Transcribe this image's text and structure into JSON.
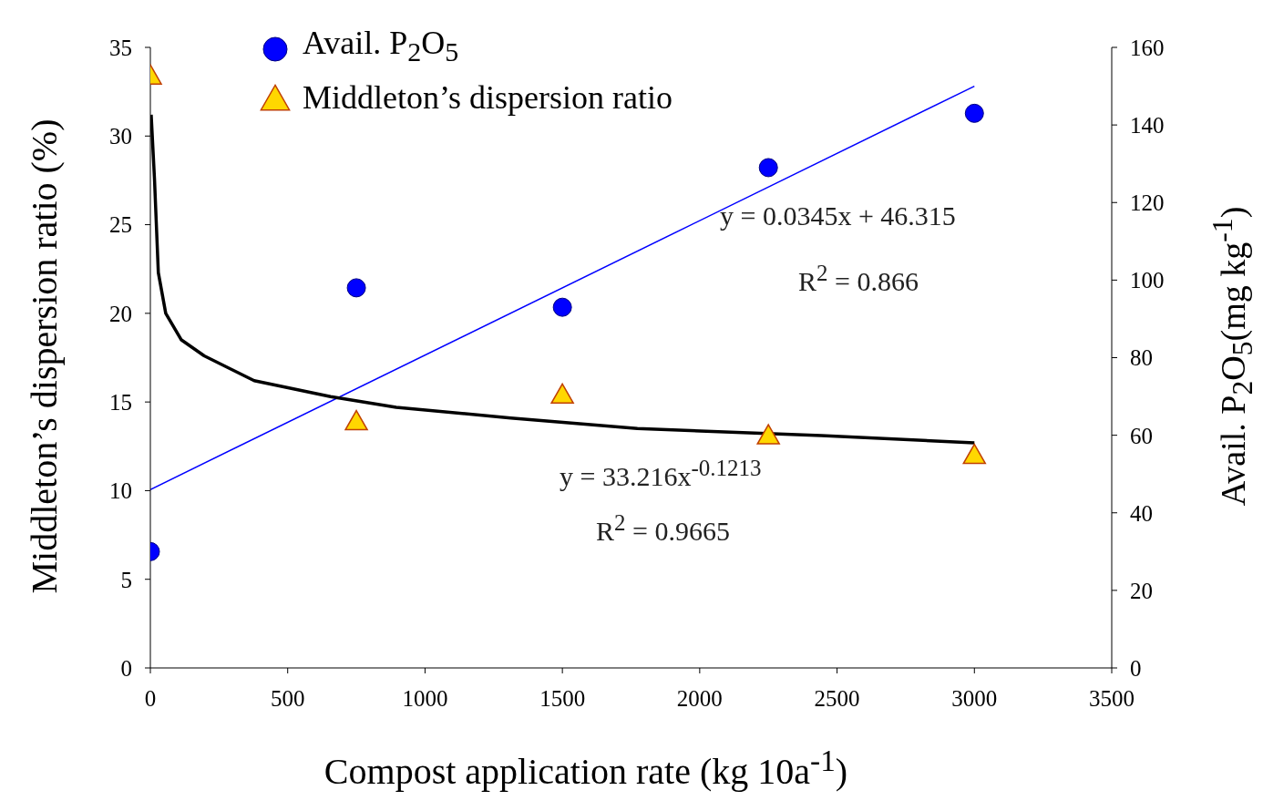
{
  "chart_data": {
    "type": "scatter",
    "xlabel": "Compost application rate (kg 10a$^{-1}$)",
    "ylabel": "Middleton’s dispersion ratio (%)",
    "y2label": "Avail. P$_{2}$O$_{5}$(mg kg$^{-1}$)",
    "xlim": [
      0,
      3500
    ],
    "xticks": [
      0,
      500,
      1000,
      1500,
      2000,
      2500,
      3000,
      3500
    ],
    "ylim": [
      0,
      35
    ],
    "yticks": [
      0,
      5,
      10,
      15,
      20,
      25,
      30,
      35
    ],
    "y2lim": [
      0,
      160
    ],
    "y2ticks": [
      0,
      20,
      40,
      60,
      80,
      100,
      120,
      140,
      160
    ],
    "legend": "top left",
    "series": [
      {
        "name": "Avail. P$_{2}$O$_{5}$",
        "axis": "y2",
        "color": "#0000ff",
        "marker": "circle",
        "x": [
          0,
          750,
          1500,
          2250,
          3000
        ],
        "values": [
          30,
          98,
          93,
          129,
          143
        ]
      },
      {
        "name": "Middleton’s dispersion ratio",
        "color": "#ffd700",
        "marker": "triangle",
        "x": [
          0,
          750,
          1500,
          2250,
          3000
        ],
        "values": [
          33.4,
          13.9,
          15.4,
          13.1,
          12.0
        ]
      },
      {
        "type": "line",
        "axis": "y2",
        "color": "#0000ff",
        "marker": "none",
        "x": [
          0,
          3000
        ],
        "values": [
          46,
          150
        ]
      },
      {
        "type": "line",
        "color": "#000000",
        "marker": "none",
        "x": [
          3,
          15,
          29,
          56,
          113,
          196,
          378,
          656,
          895,
          1312,
          1773,
          2443,
          3000
        ],
        "values": [
          31.2,
          27.6,
          22.3,
          20.0,
          18.5,
          17.6,
          16.2,
          15.3,
          14.7,
          14.1,
          13.5,
          13.1,
          12.7
        ]
      }
    ],
    "annotations": [
      "y = 0.0345x + 46.315",
      "R$^{2}$ = 0.866",
      "y = 33.216x$^{-0.1213}$",
      "R$^{2}$ = 0.9665"
    ]
  }
}
